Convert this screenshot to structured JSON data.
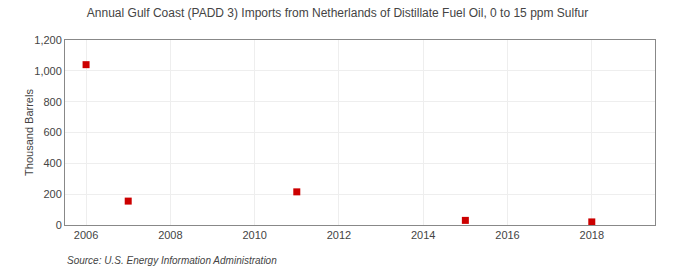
{
  "chart_data": {
    "type": "scatter",
    "title": "Annual Gulf Coast (PADD 3) Imports from Netherlands of Distillate Fuel Oil, 0 to 15 ppm Sulfur",
    "ylabel": "Thousand Barrels",
    "source": "Source: U.S. Energy Information Administration",
    "x": [
      2006,
      2007,
      2011,
      2015,
      2018
    ],
    "values": [
      1040,
      155,
      215,
      30,
      20
    ],
    "color": "#cc0000",
    "marker": "square",
    "xlim": [
      2005.5,
      2019.5
    ],
    "ylim": [
      0,
      1200
    ],
    "xticks": [
      2006,
      2008,
      2010,
      2012,
      2014,
      2016,
      2018
    ],
    "yticks": [
      0,
      200,
      400,
      600,
      800,
      {
        "value": 1000,
        "label": "1,000"
      },
      {
        "value": 1200,
        "label": "1,200"
      }
    ],
    "grid": true
  }
}
